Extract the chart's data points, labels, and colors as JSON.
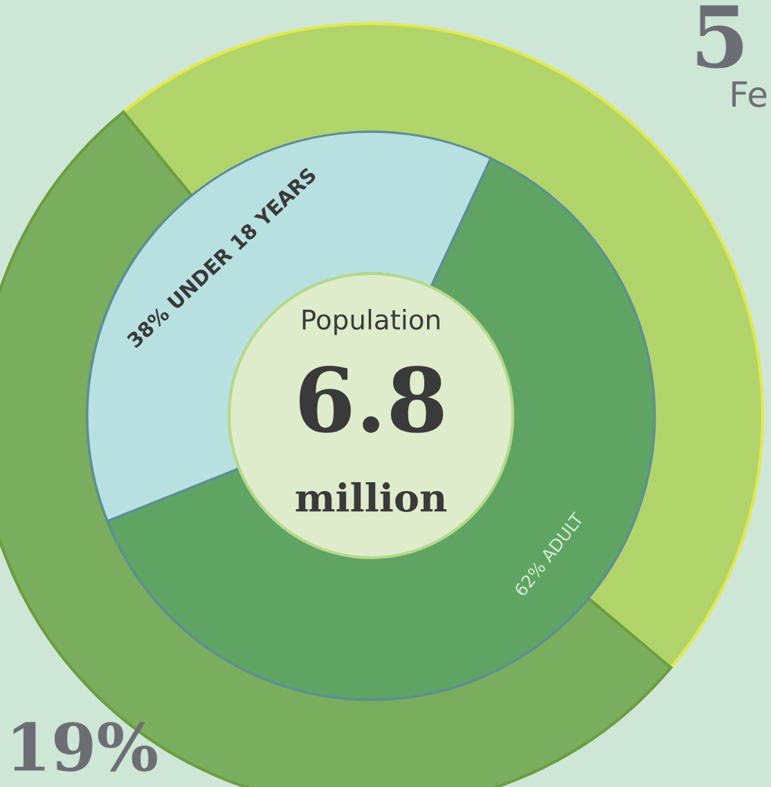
{
  "chart_data": {
    "type": "donut",
    "categories": [
      "38% UNDER 18 YEARS",
      "62% ADULT"
    ],
    "series": [
      {
        "values": [
          38,
          62
        ],
        "colors": [
          "#b9e0e0",
          "#5fa463"
        ]
      },
      {
        "values": [
          47,
          53
        ],
        "colors": [
          "#b0d46a",
          "#7aae5e"
        ]
      }
    ],
    "annotations": [
      "Population",
      "6.8",
      "million",
      "5",
      "Fe",
      "19%"
    ],
    "legend": false
  }
}
